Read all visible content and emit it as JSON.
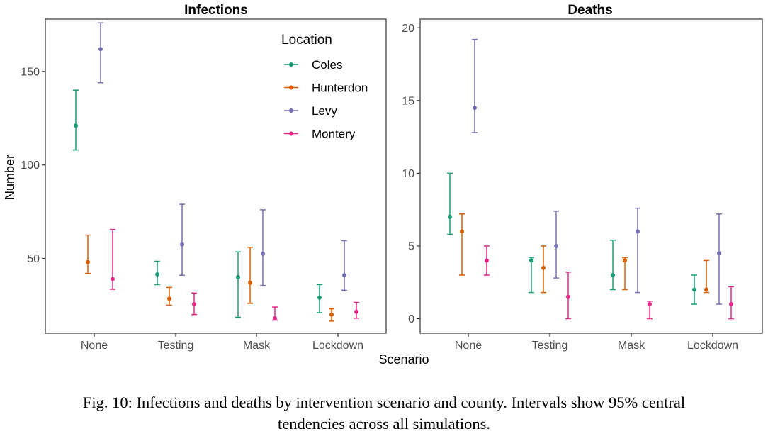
{
  "chart_data": {
    "type": "errorbar",
    "x_label": "Scenario",
    "y_label": "Number",
    "categories": [
      "None",
      "Testing",
      "Mask",
      "Lockdown"
    ],
    "legend": {
      "title": "Location",
      "position": "top-right of Infections panel"
    },
    "series_colors": {
      "Coles": "#1b9e77",
      "Hunterdon": "#d95f02",
      "Levy": "#7570b3",
      "Montery": "#e7298a"
    },
    "panels": [
      {
        "title": "Infections",
        "ylim": [
          10,
          178
        ],
        "yticks": [
          50,
          100,
          150
        ],
        "series": [
          {
            "name": "Coles",
            "points": [
              {
                "x": "None",
                "y": 121,
                "lo": 108,
                "hi": 140
              },
              {
                "x": "Testing",
                "y": 41.5,
                "lo": 36,
                "hi": 48.5
              },
              {
                "x": "Mask",
                "y": 40,
                "lo": 18.5,
                "hi": 53.5
              },
              {
                "x": "Lockdown",
                "y": 29,
                "lo": 21,
                "hi": 36
              }
            ]
          },
          {
            "name": "Hunterdon",
            "points": [
              {
                "x": "None",
                "y": 48,
                "lo": 42,
                "hi": 62.5
              },
              {
                "x": "Testing",
                "y": 28.5,
                "lo": 25,
                "hi": 34.5
              },
              {
                "x": "Mask",
                "y": 37,
                "lo": 26,
                "hi": 56
              },
              {
                "x": "Lockdown",
                "y": 20,
                "lo": 16.5,
                "hi": 23
              }
            ]
          },
          {
            "name": "Levy",
            "points": [
              {
                "x": "None",
                "y": 162,
                "lo": 144,
                "hi": 176
              },
              {
                "x": "Testing",
                "y": 57.5,
                "lo": 41,
                "hi": 79
              },
              {
                "x": "Mask",
                "y": 52.5,
                "lo": 35.5,
                "hi": 76
              },
              {
                "x": "Lockdown",
                "y": 41,
                "lo": 33,
                "hi": 59.5
              }
            ]
          },
          {
            "name": "Montery",
            "points": [
              {
                "x": "None",
                "y": 39,
                "lo": 33.5,
                "hi": 65.5
              },
              {
                "x": "Testing",
                "y": 25.5,
                "lo": 20,
                "hi": 31.5
              },
              {
                "x": "Mask",
                "y": 18,
                "lo": 17,
                "hi": 24
              },
              {
                "x": "Lockdown",
                "y": 21.5,
                "lo": 18,
                "hi": 26.5
              }
            ]
          }
        ]
      },
      {
        "title": "Deaths",
        "ylim": [
          -1,
          20.6
        ],
        "yticks": [
          0,
          5,
          10,
          15,
          20
        ],
        "series": [
          {
            "name": "Coles",
            "points": [
              {
                "x": "None",
                "y": 7,
                "lo": 5.8,
                "hi": 10
              },
              {
                "x": "Testing",
                "y": 4,
                "lo": 1.8,
                "hi": 4.2
              },
              {
                "x": "Mask",
                "y": 3,
                "lo": 2,
                "hi": 5.4
              },
              {
                "x": "Lockdown",
                "y": 2,
                "lo": 1,
                "hi": 3
              }
            ]
          },
          {
            "name": "Hunterdon",
            "points": [
              {
                "x": "None",
                "y": 6,
                "lo": 3,
                "hi": 7.2
              },
              {
                "x": "Testing",
                "y": 3.5,
                "lo": 1.8,
                "hi": 5
              },
              {
                "x": "Mask",
                "y": 4,
                "lo": 2,
                "hi": 4.2
              },
              {
                "x": "Lockdown",
                "y": 2,
                "lo": 1.8,
                "hi": 4
              }
            ]
          },
          {
            "name": "Levy",
            "points": [
              {
                "x": "None",
                "y": 14.5,
                "lo": 12.8,
                "hi": 19.2
              },
              {
                "x": "Testing",
                "y": 5,
                "lo": 2.8,
                "hi": 7.4
              },
              {
                "x": "Mask",
                "y": 6,
                "lo": 1.8,
                "hi": 7.6
              },
              {
                "x": "Lockdown",
                "y": 4.5,
                "lo": 1,
                "hi": 7.2
              }
            ]
          },
          {
            "name": "Montery",
            "points": [
              {
                "x": "None",
                "y": 4,
                "lo": 3,
                "hi": 5
              },
              {
                "x": "Testing",
                "y": 1.5,
                "lo": 0,
                "hi": 3.2
              },
              {
                "x": "Mask",
                "y": 1,
                "lo": 0,
                "hi": 1.2
              },
              {
                "x": "Lockdown",
                "y": 1,
                "lo": 0,
                "hi": 2.2
              }
            ]
          }
        ]
      }
    ]
  },
  "caption": {
    "line1": "Fig. 10: Infections and deaths by intervention scenario and county. Intervals show 95% central",
    "line2": "tendencies across all simulations."
  }
}
